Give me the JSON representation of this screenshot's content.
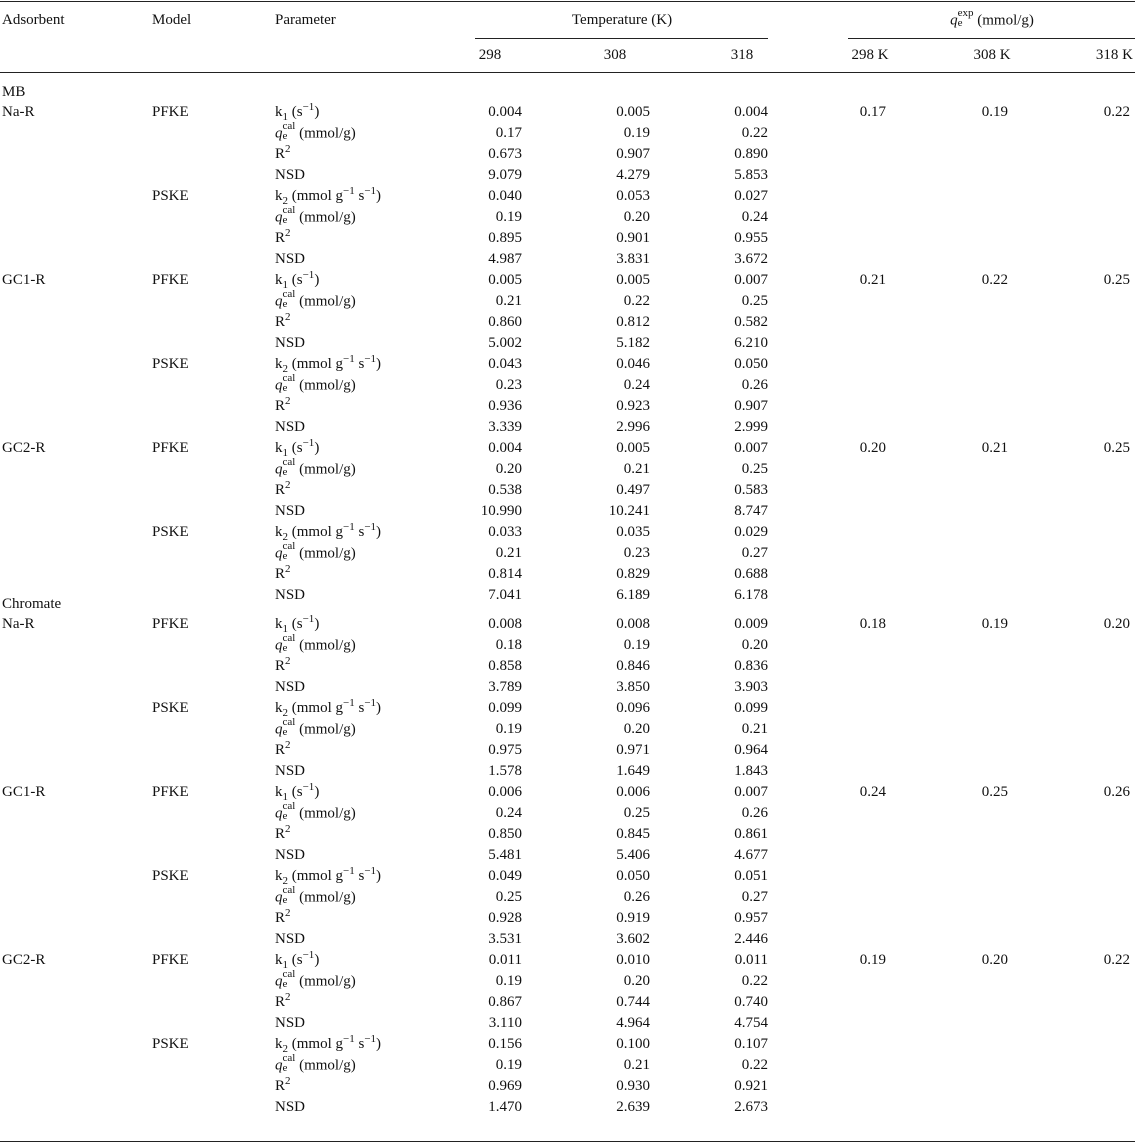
{
  "header": {
    "adsorbent": "Adsorbent",
    "model": "Model",
    "parameter": "Parameter",
    "temperature": "Temperature (K)",
    "temps": [
      "298",
      "308",
      "318"
    ],
    "qexp": [
      {
        "i": "q"
      },
      {
        "sub": "e",
        "sup": "exp"
      },
      {
        "t": " (mmol/g)"
      }
    ],
    "qexp_temps": [
      "298 K",
      "308 K",
      "318 K"
    ]
  },
  "parameters": {
    "PFKE": [
      [
        {
          "t": "k"
        },
        {
          "sub": "1"
        },
        {
          "t": " (s"
        },
        {
          "sup": "−1"
        },
        {
          "t": ")"
        }
      ],
      [
        {
          "i": "q"
        },
        {
          "sub": "e",
          "sup": "cal"
        },
        {
          "t": " (mmol/g)"
        }
      ],
      [
        {
          "t": "R"
        },
        {
          "sup": "2"
        }
      ],
      [
        {
          "t": "NSD"
        }
      ]
    ],
    "PSKE": [
      [
        {
          "t": "k"
        },
        {
          "sub": "2"
        },
        {
          "t": " (mmol g"
        },
        {
          "sup": "−1"
        },
        {
          "t": " s"
        },
        {
          "sup": "−1"
        },
        {
          "t": ")"
        }
      ],
      [
        {
          "i": "q"
        },
        {
          "sub": "e",
          "sup": "cal"
        },
        {
          "t": " (mmol/g)"
        }
      ],
      [
        {
          "t": "R"
        },
        {
          "sup": "2"
        }
      ],
      [
        {
          "t": "NSD"
        }
      ]
    ]
  },
  "groups": [
    {
      "name": "MB",
      "adsorbents": [
        {
          "name": "Na-R",
          "qexp": [
            "0.17",
            "0.19",
            "0.22"
          ],
          "models": [
            {
              "name": "PFKE",
              "rows": [
                [
                  "0.004",
                  "0.005",
                  "0.004"
                ],
                [
                  "0.17",
                  "0.19",
                  "0.22"
                ],
                [
                  "0.673",
                  "0.907",
                  "0.890"
                ],
                [
                  "9.079",
                  "4.279",
                  "5.853"
                ]
              ]
            },
            {
              "name": "PSKE",
              "rows": [
                [
                  "0.040",
                  "0.053",
                  "0.027"
                ],
                [
                  "0.19",
                  "0.20",
                  "0.24"
                ],
                [
                  "0.895",
                  "0.901",
                  "0.955"
                ],
                [
                  "4.987",
                  "3.831",
                  "3.672"
                ]
              ]
            }
          ]
        },
        {
          "name": "GC1-R",
          "qexp": [
            "0.21",
            "0.22",
            "0.25"
          ],
          "models": [
            {
              "name": "PFKE",
              "rows": [
                [
                  "0.005",
                  "0.005",
                  "0.007"
                ],
                [
                  "0.21",
                  "0.22",
                  "0.25"
                ],
                [
                  "0.860",
                  "0.812",
                  "0.582"
                ],
                [
                  "5.002",
                  "5.182",
                  "6.210"
                ]
              ]
            },
            {
              "name": "PSKE",
              "rows": [
                [
                  "0.043",
                  "0.046",
                  "0.050"
                ],
                [
                  "0.23",
                  "0.24",
                  "0.26"
                ],
                [
                  "0.936",
                  "0.923",
                  "0.907"
                ],
                [
                  "3.339",
                  "2.996",
                  "2.999"
                ]
              ]
            }
          ]
        },
        {
          "name": "GC2-R",
          "qexp": [
            "0.20",
            "0.21",
            "0.25"
          ],
          "models": [
            {
              "name": "PFKE",
              "rows": [
                [
                  "0.004",
                  "0.005",
                  "0.007"
                ],
                [
                  "0.20",
                  "0.21",
                  "0.25"
                ],
                [
                  "0.538",
                  "0.497",
                  "0.583"
                ],
                [
                  "10.990",
                  "10.241",
                  "8.747"
                ]
              ]
            },
            {
              "name": "PSKE",
              "rows": [
                [
                  "0.033",
                  "0.035",
                  "0.029"
                ],
                [
                  "0.21",
                  "0.23",
                  "0.27"
                ],
                [
                  "0.814",
                  "0.829",
                  "0.688"
                ],
                [
                  "7.041",
                  "6.189",
                  "6.178"
                ]
              ]
            }
          ]
        }
      ]
    },
    {
      "name": "Chromate",
      "adsorbents": [
        {
          "name": "Na-R",
          "qexp": [
            "0.18",
            "0.19",
            "0.20"
          ],
          "models": [
            {
              "name": "PFKE",
              "rows": [
                [
                  "0.008",
                  "0.008",
                  "0.009"
                ],
                [
                  "0.18",
                  "0.19",
                  "0.20"
                ],
                [
                  "0.858",
                  "0.846",
                  "0.836"
                ],
                [
                  "3.789",
                  "3.850",
                  "3.903"
                ]
              ]
            },
            {
              "name": "PSKE",
              "rows": [
                [
                  "0.099",
                  "0.096",
                  "0.099"
                ],
                [
                  "0.19",
                  "0.20",
                  "0.21"
                ],
                [
                  "0.975",
                  "0.971",
                  "0.964"
                ],
                [
                  "1.578",
                  "1.649",
                  "1.843"
                ]
              ]
            }
          ]
        },
        {
          "name": "GC1-R",
          "qexp": [
            "0.24",
            "0.25",
            "0.26"
          ],
          "models": [
            {
              "name": "PFKE",
              "rows": [
                [
                  "0.006",
                  "0.006",
                  "0.007"
                ],
                [
                  "0.24",
                  "0.25",
                  "0.26"
                ],
                [
                  "0.850",
                  "0.845",
                  "0.861"
                ],
                [
                  "5.481",
                  "5.406",
                  "4.677"
                ]
              ]
            },
            {
              "name": "PSKE",
              "rows": [
                [
                  "0.049",
                  "0.050",
                  "0.051"
                ],
                [
                  "0.25",
                  "0.26",
                  "0.27"
                ],
                [
                  "0.928",
                  "0.919",
                  "0.957"
                ],
                [
                  "3.531",
                  "3.602",
                  "2.446"
                ]
              ]
            }
          ]
        },
        {
          "name": "GC2-R",
          "qexp": [
            "0.19",
            "0.20",
            "0.22"
          ],
          "models": [
            {
              "name": "PFKE",
              "rows": [
                [
                  "0.011",
                  "0.010",
                  "0.011"
                ],
                [
                  "0.19",
                  "0.20",
                  "0.22"
                ],
                [
                  "0.867",
                  "0.744",
                  "0.740"
                ],
                [
                  "3.110",
                  "4.964",
                  "4.754"
                ]
              ]
            },
            {
              "name": "PSKE",
              "rows": [
                [
                  "0.156",
                  "0.100",
                  "0.107"
                ],
                [
                  "0.19",
                  "0.21",
                  "0.22"
                ],
                [
                  "0.969",
                  "0.930",
                  "0.921"
                ],
                [
                  "1.470",
                  "2.639",
                  "2.673"
                ]
              ]
            }
          ]
        }
      ]
    }
  ]
}
